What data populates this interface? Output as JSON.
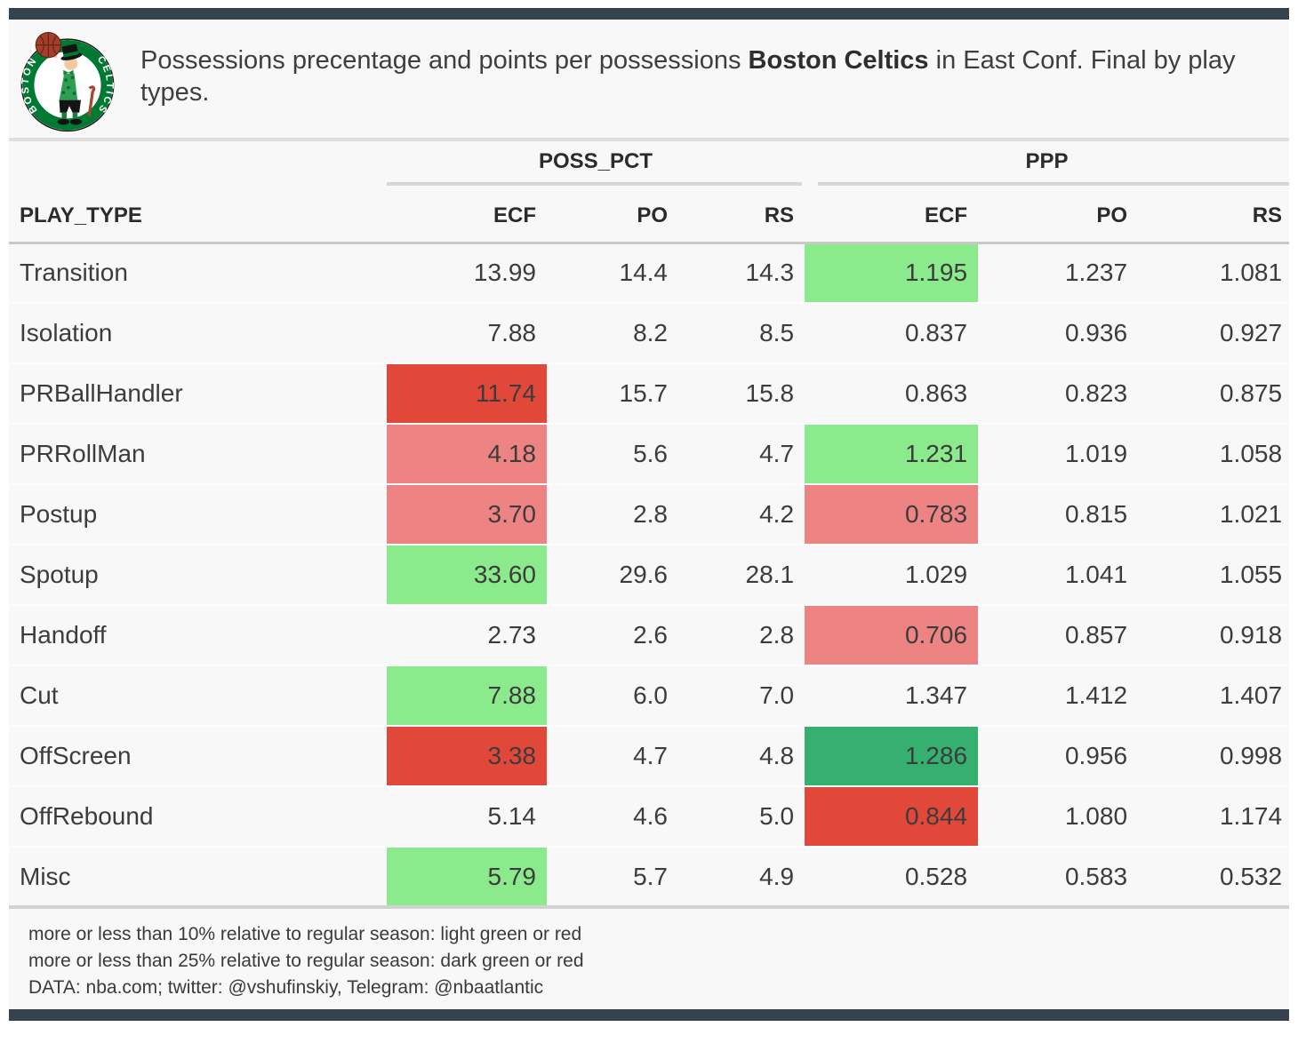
{
  "header": {
    "title": {
      "prefix": "Possessions precentage and points per possessions ",
      "team": "Boston Celtics",
      "suffix": " in East Conf. Final by play types."
    },
    "logo": {
      "team": "Boston Celtics",
      "ring_top": "BOSTON",
      "ring_side": "CELTICS"
    }
  },
  "table": {
    "play_type_header": "PLAY_TYPE",
    "groups": [
      {
        "label": "POSS_PCT",
        "columns": [
          "ECF",
          "PO",
          "RS"
        ]
      },
      {
        "label": "PPP",
        "columns": [
          "ECF",
          "PO",
          "RS"
        ]
      }
    ],
    "rows": [
      {
        "play_type": "Transition",
        "poss_pct": {
          "ecf": "13.99",
          "po": "14.4",
          "rs": "14.3"
        },
        "ppp": {
          "ecf": "1.195",
          "po": "1.237",
          "rs": "1.081"
        },
        "highlight": {
          "poss_ecf": null,
          "ppp_ecf": "light-green"
        }
      },
      {
        "play_type": "Isolation",
        "poss_pct": {
          "ecf": "7.88",
          "po": "8.2",
          "rs": "8.5"
        },
        "ppp": {
          "ecf": "0.837",
          "po": "0.936",
          "rs": "0.927"
        },
        "highlight": {
          "poss_ecf": null,
          "ppp_ecf": null
        }
      },
      {
        "play_type": "PRBallHandler",
        "poss_pct": {
          "ecf": "11.74",
          "po": "15.7",
          "rs": "15.8"
        },
        "ppp": {
          "ecf": "0.863",
          "po": "0.823",
          "rs": "0.875"
        },
        "highlight": {
          "poss_ecf": "dark-red",
          "ppp_ecf": null
        }
      },
      {
        "play_type": "PRRollMan",
        "poss_pct": {
          "ecf": "4.18",
          "po": "5.6",
          "rs": "4.7"
        },
        "ppp": {
          "ecf": "1.231",
          "po": "1.019",
          "rs": "1.058"
        },
        "highlight": {
          "poss_ecf": "light-red",
          "ppp_ecf": "light-green"
        }
      },
      {
        "play_type": "Postup",
        "poss_pct": {
          "ecf": "3.70",
          "po": "2.8",
          "rs": "4.2"
        },
        "ppp": {
          "ecf": "0.783",
          "po": "0.815",
          "rs": "1.021"
        },
        "highlight": {
          "poss_ecf": "light-red",
          "ppp_ecf": "light-red"
        }
      },
      {
        "play_type": "Spotup",
        "poss_pct": {
          "ecf": "33.60",
          "po": "29.6",
          "rs": "28.1"
        },
        "ppp": {
          "ecf": "1.029",
          "po": "1.041",
          "rs": "1.055"
        },
        "highlight": {
          "poss_ecf": "light-green",
          "ppp_ecf": null
        }
      },
      {
        "play_type": "Handoff",
        "poss_pct": {
          "ecf": "2.73",
          "po": "2.6",
          "rs": "2.8"
        },
        "ppp": {
          "ecf": "0.706",
          "po": "0.857",
          "rs": "0.918"
        },
        "highlight": {
          "poss_ecf": null,
          "ppp_ecf": "light-red"
        }
      },
      {
        "play_type": "Cut",
        "poss_pct": {
          "ecf": "7.88",
          "po": "6.0",
          "rs": "7.0"
        },
        "ppp": {
          "ecf": "1.347",
          "po": "1.412",
          "rs": "1.407"
        },
        "highlight": {
          "poss_ecf": "light-green",
          "ppp_ecf": null
        }
      },
      {
        "play_type": "OffScreen",
        "poss_pct": {
          "ecf": "3.38",
          "po": "4.7",
          "rs": "4.8"
        },
        "ppp": {
          "ecf": "1.286",
          "po": "0.956",
          "rs": "0.998"
        },
        "highlight": {
          "poss_ecf": "dark-red",
          "ppp_ecf": "dark-green"
        }
      },
      {
        "play_type": "OffRebound",
        "poss_pct": {
          "ecf": "5.14",
          "po": "4.6",
          "rs": "5.0"
        },
        "ppp": {
          "ecf": "0.844",
          "po": "1.080",
          "rs": "1.174"
        },
        "highlight": {
          "poss_ecf": null,
          "ppp_ecf": "dark-red"
        }
      },
      {
        "play_type": "Misc",
        "poss_pct": {
          "ecf": "5.79",
          "po": "5.7",
          "rs": "4.9"
        },
        "ppp": {
          "ecf": "0.528",
          "po": "0.583",
          "rs": "0.532"
        },
        "highlight": {
          "poss_ecf": "light-green",
          "ppp_ecf": null
        }
      }
    ]
  },
  "footer": {
    "notes": [
      "more or less than 10% relative to regular season: light green or red",
      "more or less than 25% relative to regular season: dark green or red",
      "DATA: nba.com; twitter: @vshufinskiy, Telegram: @nbaatlantic"
    ]
  },
  "colors": {
    "accent_bar": "#36424e",
    "light_green": "#8bea8b",
    "dark_green": "#36b06f",
    "light_red": "#ee8383",
    "dark_red": "#e1483a",
    "logo_green": "#007a33",
    "ball_brown": "#a43e2b"
  },
  "chart_data": {
    "type": "table",
    "title": "Possessions precentage and points per possessions Boston Celtics in East Conf. Final by play types.",
    "column_groups": [
      "POSS_PCT",
      "PPP"
    ],
    "columns": [
      "PLAY_TYPE",
      "POSS_PCT ECF",
      "POSS_PCT PO",
      "POSS_PCT RS",
      "PPP ECF",
      "PPP PO",
      "PPP RS"
    ],
    "rows": [
      [
        "Transition",
        13.99,
        14.4,
        14.3,
        1.195,
        1.237,
        1.081
      ],
      [
        "Isolation",
        7.88,
        8.2,
        8.5,
        0.837,
        0.936,
        0.927
      ],
      [
        "PRBallHandler",
        11.74,
        15.7,
        15.8,
        0.863,
        0.823,
        0.875
      ],
      [
        "PRRollMan",
        4.18,
        5.6,
        4.7,
        1.231,
        1.019,
        1.058
      ],
      [
        "Postup",
        3.7,
        2.8,
        4.2,
        0.783,
        0.815,
        1.021
      ],
      [
        "Spotup",
        33.6,
        29.6,
        28.1,
        1.029,
        1.041,
        1.055
      ],
      [
        "Handoff",
        2.73,
        2.6,
        2.8,
        0.706,
        0.857,
        0.918
      ],
      [
        "Cut",
        7.88,
        6.0,
        7.0,
        1.347,
        1.412,
        1.407
      ],
      [
        "OffScreen",
        3.38,
        4.7,
        4.8,
        1.286,
        0.956,
        0.998
      ],
      [
        "OffRebound",
        5.14,
        4.6,
        5.0,
        0.844,
        1.08,
        1.174
      ],
      [
        "Misc",
        5.79,
        5.7,
        4.9,
        0.528,
        0.583,
        0.532
      ]
    ],
    "highlight_legend": [
      "more or less than 10% relative to regular season: light green or red",
      "more or less than 25% relative to regular season: dark green or red"
    ]
  }
}
